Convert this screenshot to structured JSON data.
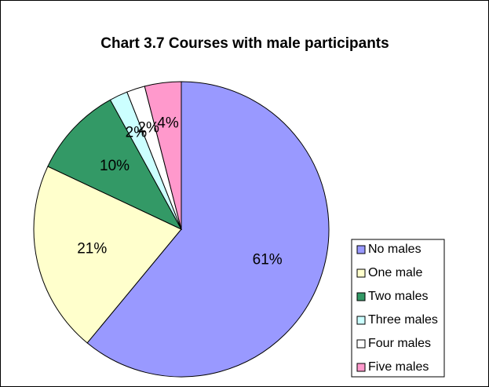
{
  "chart_data": {
    "type": "pie",
    "title": "Chart 3.7 Courses with male participants",
    "categories": [
      "No males",
      "One male",
      "Two males",
      "Three males",
      "Four males",
      "Five males"
    ],
    "values": [
      61,
      21,
      10,
      2,
      2,
      4
    ],
    "value_labels": [
      "61%",
      "21%",
      "10%",
      "2%",
      "2%",
      "4%"
    ],
    "colors": [
      "#9999ff",
      "#ffffcc",
      "#339966",
      "#ccffff",
      "#ffffff",
      "#ff99cc"
    ],
    "legend": "right"
  }
}
